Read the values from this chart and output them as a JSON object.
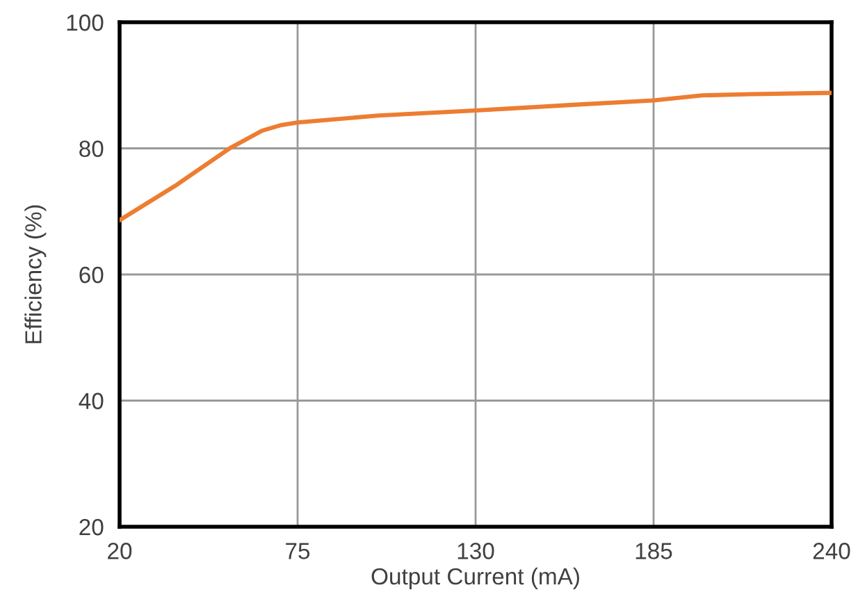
{
  "chart_data": {
    "type": "line",
    "xlabel": "Output Current (mA)",
    "ylabel": "Efficiency (%)",
    "x": [
      20,
      37,
      54,
      64,
      70,
      75,
      100,
      130,
      160,
      185,
      200,
      215,
      240
    ],
    "series": [
      {
        "color": "#ed7d31",
        "values": [
          68.6,
          74,
          80,
          82.8,
          83.7,
          84.1,
          85.2,
          86.0,
          86.9,
          87.6,
          88.4,
          88.6,
          88.8
        ]
      }
    ],
    "xlim": [
      20,
      240
    ],
    "xticks": [
      20,
      75,
      130,
      185,
      240
    ],
    "ylim": [
      20,
      100
    ],
    "yticks": [
      20,
      40,
      60,
      80,
      100
    ],
    "grid": true,
    "marker": "none",
    "line_style": "solid"
  }
}
